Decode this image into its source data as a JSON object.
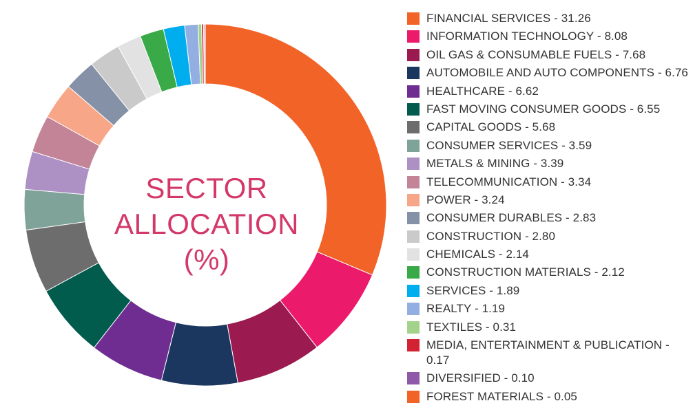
{
  "center_label": {
    "line1": "SECTOR",
    "line2": "ALLOCATION",
    "line3": "(%)"
  },
  "chart_data": {
    "type": "pie",
    "title": "SECTOR ALLOCATION (%)",
    "unit": "%",
    "start": "12 o'clock, clockwise",
    "slices": [
      {
        "label": "FINANCIAL SERVICES",
        "value": 31.26,
        "display": "31.26",
        "color": "#f26328"
      },
      {
        "label": "INFORMATION TECHNOLOGY",
        "value": 8.08,
        "display": "8.08",
        "color": "#ec1a6b"
      },
      {
        "label": "OIL GAS & CONSUMABLE FUELS",
        "value": 7.68,
        "display": "7.68",
        "color": "#9b1a4f"
      },
      {
        "label": "AUTOMOBILE AND AUTO COMPONENTS",
        "value": 6.76,
        "display": "6.76",
        "color": "#1b365f"
      },
      {
        "label": "HEALTHCARE",
        "value": 6.62,
        "display": "6.62",
        "color": "#6f2d91"
      },
      {
        "label": "FAST MOVING CONSUMER GOODS",
        "value": 6.55,
        "display": "6.55",
        "color": "#015c4d"
      },
      {
        "label": "CAPITAL GOODS",
        "value": 5.68,
        "display": "5.68",
        "color": "#6d6d6d"
      },
      {
        "label": "CONSUMER SERVICES",
        "value": 3.59,
        "display": "3.59",
        "color": "#7fa399"
      },
      {
        "label": "METALS & MINING",
        "value": 3.39,
        "display": "3.39",
        "color": "#ad91c4"
      },
      {
        "label": "TELECOMMUNICATION",
        "value": 3.34,
        "display": "3.34",
        "color": "#c48497"
      },
      {
        "label": "POWER",
        "value": 3.24,
        "display": "3.24",
        "color": "#f7a688"
      },
      {
        "label": "CONSUMER DURABLES",
        "value": 2.83,
        "display": "2.83",
        "color": "#8491a6"
      },
      {
        "label": "CONSTRUCTION",
        "value": 2.8,
        "display": "2.80",
        "color": "#cacaca"
      },
      {
        "label": "CHEMICALS",
        "value": 2.14,
        "display": "2.14",
        "color": "#e2e2e2"
      },
      {
        "label": "CONSTRUCTION MATERIALS",
        "value": 2.12,
        "display": "2.12",
        "color": "#3aaa48"
      },
      {
        "label": "SERVICES",
        "value": 1.89,
        "display": "1.89",
        "color": "#00adef"
      },
      {
        "label": "REALTY",
        "value": 1.19,
        "display": "1.19",
        "color": "#93aee0"
      },
      {
        "label": "TEXTILES",
        "value": 0.31,
        "display": "0.31",
        "color": "#a3d28b"
      },
      {
        "label": "MEDIA, ENTERTAINMENT & PUBLICATION",
        "value": 0.17,
        "display": "0.17",
        "color": "#d32232"
      },
      {
        "label": "DIVERSIFIED",
        "value": 0.1,
        "display": "0.10",
        "color": "#8e5aa8"
      },
      {
        "label": "FOREST MATERIALS",
        "value": 0.05,
        "display": "0.05",
        "color": "#f26328"
      }
    ]
  }
}
